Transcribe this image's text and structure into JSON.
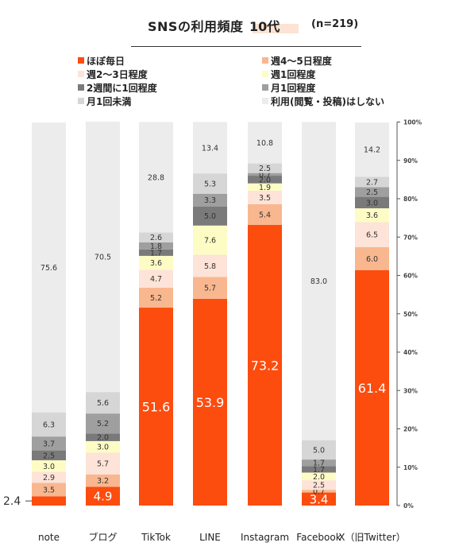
{
  "title": {
    "main": "SNSの利用頻度",
    "band": "10代",
    "n": "(n=219)"
  },
  "legend": [
    {
      "label": "ほぼ毎日",
      "color": "#fc4c0e"
    },
    {
      "label": "週4～5日程度",
      "color": "#f9b78f"
    },
    {
      "label": "週2～3日程度",
      "color": "#fde3d8"
    },
    {
      "label": "週1回程度",
      "color": "#fefcc5"
    },
    {
      "label": "2週間に1回程度",
      "color": "#7a7a7a"
    },
    {
      "label": "月1回程度",
      "color": "#9f9f9f"
    },
    {
      "label": "月1回未満",
      "color": "#d6d6d6"
    },
    {
      "label": "利用(閲覧・投稿)はしない",
      "color": "#ececec"
    }
  ],
  "chart_data": {
    "type": "bar",
    "stacked": true,
    "categories": [
      "note",
      "ブログ",
      "TikTok",
      "LINE",
      "Instagram",
      "Facebook",
      "X（旧Twitter）"
    ],
    "series": [
      {
        "name": "ほぼ毎日",
        "values": [
          2.4,
          4.9,
          51.6,
          53.9,
          73.2,
          3.4,
          61.4
        ]
      },
      {
        "name": "週4～5日程度",
        "values": [
          3.5,
          3.2,
          5.2,
          5.7,
          5.4,
          0.7,
          6.0
        ]
      },
      {
        "name": "週2～3日程度",
        "values": [
          2.9,
          5.7,
          4.7,
          5.8,
          3.5,
          2.5,
          6.5
        ]
      },
      {
        "name": "週1回程度",
        "values": [
          3.0,
          3.0,
          3.6,
          7.6,
          1.9,
          2.0,
          3.6
        ]
      },
      {
        "name": "2週間に1回程度",
        "values": [
          2.5,
          2.0,
          1.7,
          5.0,
          2.0,
          1.7,
          3.0
        ]
      },
      {
        "name": "月1回程度",
        "values": [
          3.7,
          5.2,
          1.8,
          3.3,
          0.7,
          1.7,
          2.5
        ]
      },
      {
        "name": "月1回未満",
        "values": [
          6.3,
          5.6,
          2.6,
          5.3,
          2.5,
          5.0,
          2.7
        ]
      },
      {
        "name": "利用(閲覧・投稿)はしない",
        "values": [
          75.6,
          70.5,
          28.8,
          13.4,
          10.8,
          83.0,
          14.2
        ]
      }
    ],
    "yaxis": {
      "ticks": [
        "0%",
        "10%",
        "20%",
        "30%",
        "40%",
        "50%",
        "60%",
        "70%",
        "80%",
        "90%",
        "100%"
      ],
      "range": [
        0,
        100
      ],
      "position": "right"
    },
    "callout": "2.4",
    "grid": false,
    "legend_position": "top"
  }
}
